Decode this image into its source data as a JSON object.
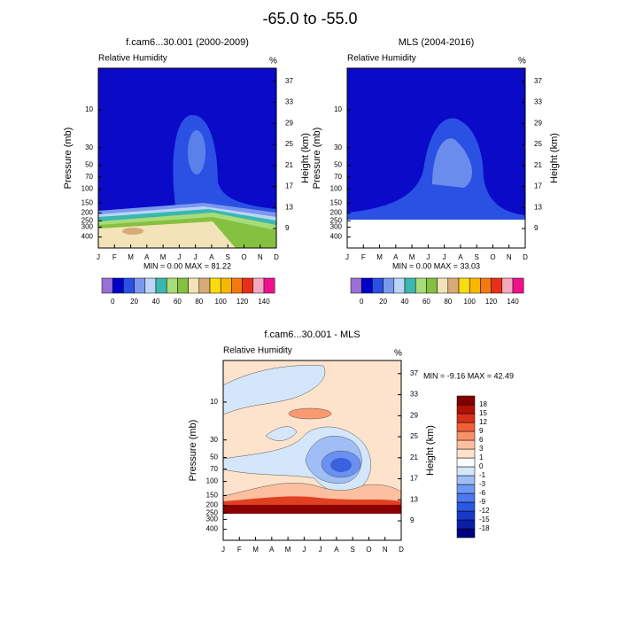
{
  "title": "-65.0 to -55.0",
  "chart_data": [
    {
      "type": "contour",
      "title": "f.cam6...30.001 (2000-2009)",
      "subtitle": "Relative Humidity",
      "units": "%",
      "stats": "MIN =  0.00  MAX = 81.22",
      "categories": [
        "J",
        "F",
        "M",
        "A",
        "M",
        "J",
        "J",
        "A",
        "S",
        "O",
        "N",
        "D"
      ],
      "ylabel": "Pressure (mb)",
      "y2label": "Height (km)",
      "log_y": true,
      "ylim": [
        3,
        550
      ],
      "yticks": [
        10,
        30,
        50,
        70,
        100,
        150,
        200,
        250,
        300,
        400
      ],
      "y2lim": [
        5.3,
        39.5
      ],
      "y2ticks": [
        9,
        13,
        17,
        21,
        25,
        29,
        33,
        37
      ],
      "colorbar": {
        "orientation": "horizontal",
        "levels": [
          0,
          20,
          40,
          60,
          80,
          100,
          120,
          140
        ],
        "colors": [
          "#9a70d8",
          "#0000c8",
          "#2a50e4",
          "#7a98ee",
          "#bcd4f6",
          "#3ab8b0",
          "#a8dc78",
          "#86c040",
          "#f2e4b8",
          "#d8aa78",
          "#f8dc10",
          "#f8b800",
          "#f47a10",
          "#e83018",
          "#f4a8c0",
          "#f0108c"
        ]
      }
    },
    {
      "type": "contour",
      "title": "MLS (2004-2016)",
      "subtitle": "Relative Humidity",
      "units": "%",
      "stats": "MIN =  0.00  MAX = 33.03",
      "categories": [
        "J",
        "F",
        "M",
        "A",
        "M",
        "J",
        "J",
        "A",
        "S",
        "O",
        "N",
        "D"
      ],
      "ylabel": "Pressure (mb)",
      "y2label": "Height (km)",
      "log_y": true,
      "ylim": [
        3,
        550
      ],
      "yticks": [
        10,
        30,
        50,
        70,
        100,
        150,
        200,
        250,
        300,
        400
      ],
      "y2lim": [
        5.3,
        39.5
      ],
      "y2ticks": [
        9,
        13,
        17,
        21,
        25,
        29,
        33,
        37
      ],
      "colorbar": {
        "orientation": "horizontal",
        "levels": [
          0,
          20,
          40,
          60,
          80,
          100,
          120,
          140
        ],
        "colors": [
          "#9a70d8",
          "#0000c8",
          "#2a50e4",
          "#7a98ee",
          "#bcd4f6",
          "#3ab8b0",
          "#a8dc78",
          "#86c040",
          "#f2e4b8",
          "#d8aa78",
          "#f8dc10",
          "#f8b800",
          "#f47a10",
          "#e83018",
          "#f4a8c0",
          "#f0108c"
        ]
      }
    },
    {
      "type": "contour",
      "title": "f.cam6...30.001 - MLS",
      "subtitle": "Relative Humidity",
      "units": "%",
      "stats": "MIN = -9.16  MAX =  42.49",
      "categories": [
        "J",
        "F",
        "M",
        "A",
        "M",
        "J",
        "J",
        "A",
        "S",
        "O",
        "N",
        "D"
      ],
      "ylabel": "Pressure (mb)",
      "y2label": "Height (km)",
      "log_y": true,
      "ylim": [
        3,
        550
      ],
      "yticks": [
        10,
        30,
        50,
        70,
        100,
        150,
        200,
        250,
        300,
        400
      ],
      "y2lim": [
        5.3,
        39.5
      ],
      "y2ticks": [
        9,
        13,
        17,
        21,
        25,
        29,
        33,
        37
      ],
      "colorbar": {
        "orientation": "vertical",
        "levels": [
          -18,
          -15,
          -12,
          -9,
          -6,
          -3,
          -1,
          0,
          1,
          3,
          6,
          9,
          12,
          15,
          18
        ],
        "colors": [
          "#00007f",
          "#0a1ea8",
          "#1838c8",
          "#2a58e0",
          "#4a78ee",
          "#7098f2",
          "#a0bef6",
          "#d4e6fa",
          "#fbfbff",
          "#fde2cc",
          "#fcc0a0",
          "#f89068",
          "#f06038",
          "#d83018",
          "#b01008",
          "#800000"
        ]
      }
    }
  ]
}
